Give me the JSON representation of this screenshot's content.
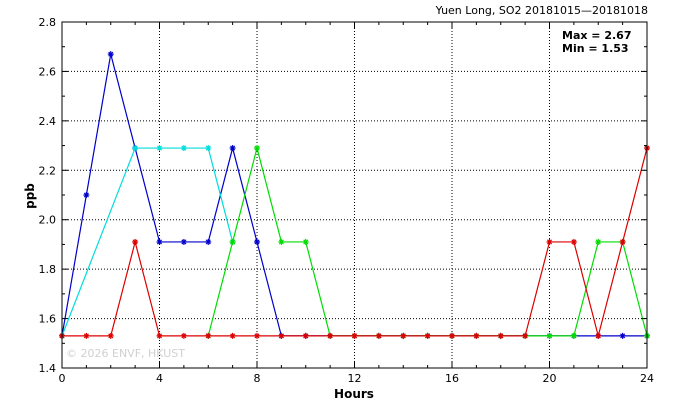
{
  "chart_data": {
    "type": "line",
    "title": "Yuen Long, SO2 20181015—20181018",
    "xlabel": "Hours",
    "ylabel": "ppb",
    "xlim": [
      0,
      24
    ],
    "ylim": [
      1.4,
      2.8
    ],
    "xticks": [
      0,
      4,
      8,
      12,
      16,
      20,
      24
    ],
    "yticks": [
      1.4,
      1.6,
      1.8,
      2.0,
      2.2,
      2.4,
      2.6,
      2.8
    ],
    "ytick_labels": [
      "1.4",
      "1.6",
      "1.8",
      "2.0",
      "2.2",
      "2.4",
      "2.6",
      "2.8"
    ],
    "grid": true,
    "annotations": {
      "max_text": "Max = 2.67",
      "min_text": "Min = 1.53",
      "watermark": "© 2026  ENVF, HKUST"
    },
    "series": [
      {
        "color": "#0000cc",
        "x": [
          0,
          1,
          2,
          3,
          4,
          5,
          6,
          7,
          8,
          9,
          10,
          11,
          12,
          13,
          14,
          15,
          16,
          17,
          18,
          19,
          20,
          21,
          22,
          23,
          24
        ],
        "y": [
          1.53,
          2.1,
          2.67,
          2.29,
          1.91,
          1.91,
          1.91,
          2.29,
          1.91,
          1.53,
          1.53,
          1.53,
          1.53,
          1.53,
          1.53,
          1.53,
          1.53,
          1.53,
          1.53,
          1.53,
          1.53,
          1.53,
          1.53,
          1.53,
          1.53
        ]
      },
      {
        "color": "#00dddd",
        "x": [
          0,
          3,
          4,
          5,
          6,
          7
        ],
        "y": [
          1.53,
          2.29,
          2.29,
          2.29,
          2.29,
          1.91
        ]
      },
      {
        "color": "#00dd00",
        "x": [
          6,
          7,
          8,
          9,
          10,
          11,
          12,
          13,
          14,
          15,
          16,
          17,
          18,
          19,
          20,
          21,
          22,
          23,
          24
        ],
        "y": [
          1.53,
          1.91,
          2.29,
          1.91,
          1.91,
          1.53,
          1.53,
          1.53,
          1.53,
          1.53,
          1.53,
          1.53,
          1.53,
          1.53,
          1.53,
          1.53,
          1.91,
          1.91,
          1.53
        ]
      },
      {
        "color": "#dd0000",
        "x": [
          0,
          1,
          2,
          3,
          4,
          5,
          6,
          7,
          8,
          9,
          10,
          11,
          12,
          13,
          14,
          15,
          16,
          17,
          18,
          19,
          20,
          21,
          22,
          23,
          24
        ],
        "y": [
          1.53,
          1.53,
          1.53,
          1.91,
          1.53,
          1.53,
          1.53,
          1.53,
          1.53,
          1.53,
          1.53,
          1.53,
          1.53,
          1.53,
          1.53,
          1.53,
          1.53,
          1.53,
          1.53,
          1.53,
          1.91,
          1.91,
          1.53,
          1.91,
          2.29
        ]
      }
    ]
  }
}
